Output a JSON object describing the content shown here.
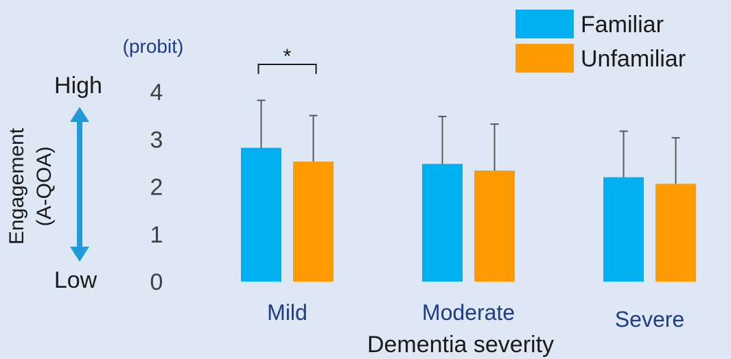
{
  "colors": {
    "familiar": "#00b0f0",
    "unfamiliar": "#ff9a00",
    "arrow": "#1f9bd7",
    "category_label": "#1f3c88",
    "unit_label": "#1f3c88",
    "text": "#1a1a1a",
    "tick": "#404040",
    "error_bar": "#595959",
    "background": "#dde8f4"
  },
  "chart_data": {
    "type": "bar",
    "title": "",
    "xlabel": "Dementia severity",
    "ylabel": "Engagement",
    "ylabel_sub": "(A-QOA)",
    "unit": "(probit)",
    "high_label": "High",
    "low_label": "Low",
    "categories": [
      "Mild",
      "Moderate",
      "Severe"
    ],
    "series": [
      {
        "name": "Familiar",
        "values": [
          2.82,
          2.48,
          2.2
        ],
        "errors": [
          1.0,
          1.0,
          0.97
        ]
      },
      {
        "name": "Unfamiliar",
        "values": [
          2.53,
          2.34,
          2.06
        ],
        "errors": [
          0.97,
          0.98,
          0.97
        ]
      }
    ],
    "ylim": [
      0,
      4
    ],
    "yticks": [
      0,
      1,
      2,
      3,
      4
    ],
    "significance": {
      "category_index": 0,
      "label": "*"
    },
    "legend_position": "top-right",
    "grid": false
  }
}
